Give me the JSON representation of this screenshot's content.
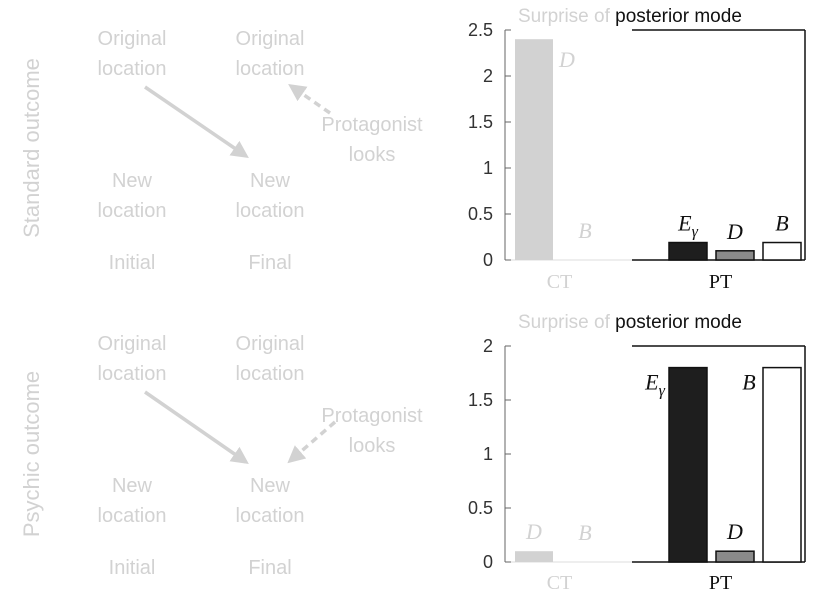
{
  "colors": {
    "faded": "#d2d2d2",
    "ct_bar": "#d2d2d2",
    "pt_E": "#1e1e1e",
    "pt_D": "#8a8a8a",
    "pt_B": "#ffffff",
    "axis": "#111111"
  },
  "panels": [
    {
      "row_label": "Standard outcome",
      "diagram": {
        "orig_initial": "Original\nlocation",
        "orig_final": "Original\nlocation",
        "protagonist": "Protagonist\nlooks",
        "new_initial": "New\nlocation",
        "new_final": "New\nlocation",
        "initial": "Initial",
        "final": "Final"
      },
      "title_prefix": "Surprise of ",
      "title_main": "posterior mode"
    },
    {
      "row_label": "Psychic outcome",
      "diagram": {
        "orig_initial": "Original\nlocation",
        "orig_final": "Original\nlocation",
        "protagonist": "Protagonist\nlooks",
        "new_initial": "New\nlocation",
        "new_final": "New\nlocation",
        "initial": "Initial",
        "final": "Final"
      },
      "title_prefix": "Surprise of ",
      "title_main": "posterior mode"
    }
  ],
  "chart_data": [
    {
      "type": "bar",
      "title": "Surprise of posterior mode",
      "groups": [
        "CT",
        "PT"
      ],
      "bars": [
        {
          "group": "CT",
          "label": "D",
          "value": 2.4
        },
        {
          "group": "CT",
          "label": "B",
          "value": 0.0
        },
        {
          "group": "PT",
          "label": "E",
          "label_sub": "γ",
          "value": 0.19
        },
        {
          "group": "PT",
          "label": "D",
          "value": 0.1
        },
        {
          "group": "PT",
          "label": "B",
          "value": 0.19
        }
      ],
      "yticks": [
        "0",
        "0.5",
        "1",
        "1.5",
        "2",
        "2.5"
      ],
      "ylim": [
        0,
        2.5
      ]
    },
    {
      "type": "bar",
      "title": "Surprise of posterior mode",
      "groups": [
        "CT",
        "PT"
      ],
      "bars": [
        {
          "group": "CT",
          "label": "D",
          "value": 0.1
        },
        {
          "group": "CT",
          "label": "B",
          "value": 0.0
        },
        {
          "group": "PT",
          "label": "E",
          "label_sub": "γ",
          "value": 1.8
        },
        {
          "group": "PT",
          "label": "D",
          "value": 0.1
        },
        {
          "group": "PT",
          "label": "B",
          "value": 1.8
        }
      ],
      "yticks": [
        "0",
        "0.5",
        "1",
        "1.5",
        "2"
      ],
      "ylim": [
        0,
        2
      ]
    }
  ]
}
